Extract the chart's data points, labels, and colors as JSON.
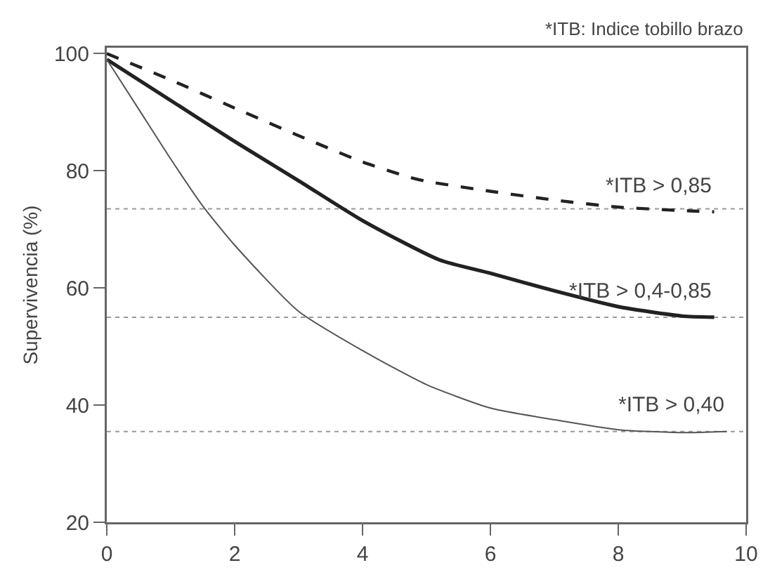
{
  "chart_data": {
    "type": "line",
    "ylabel": "Supervivencia (%)",
    "xlim": [
      0,
      10
    ],
    "ylim": [
      20,
      101
    ],
    "xticks": [
      0,
      2,
      4,
      6,
      8,
      10
    ],
    "yticks": [
      20,
      40,
      60,
      80,
      100
    ],
    "grid": false,
    "legend": false,
    "marker": "none",
    "annotations": [
      "*ITB: Indice tobillo brazo"
    ],
    "ref_lines": [
      {
        "axis": "y",
        "value": 73.5,
        "color": "#999999",
        "line_style": "dotted"
      },
      {
        "axis": "y",
        "value": 55,
        "color": "#999999",
        "line_style": "dotted"
      },
      {
        "axis": "y",
        "value": 35.5,
        "color": "#999999",
        "line_style": "dotted"
      }
    ],
    "series": [
      {
        "name": "*ITB > 0,85",
        "color": "#222222",
        "line_style": "dashed",
        "x": [
          0,
          1,
          2,
          3,
          4,
          4.7,
          5,
          6,
          7,
          8,
          9,
          9.5
        ],
        "values": [
          100,
          95.5,
          90.7,
          86,
          81.5,
          79,
          78.2,
          76.5,
          75,
          73.8,
          73.2,
          73
        ]
      },
      {
        "name": "*ITB > 0,4-0,85",
        "color": "#222222",
        "line_style": "solid",
        "x": [
          0,
          1,
          2,
          3,
          4,
          5.2,
          6,
          7,
          8,
          9,
          9.5
        ],
        "values": [
          99,
          92,
          85,
          78.3,
          71.5,
          64.8,
          62.5,
          59.5,
          56.8,
          55.2,
          55
        ]
      },
      {
        "name": "*ITB > 0,40",
        "color": "#555555",
        "line_style": "solid",
        "x": [
          0,
          0.5,
          1,
          1.5,
          2,
          3,
          4,
          5,
          6,
          7,
          8,
          9,
          9.7
        ],
        "values": [
          99,
          90.5,
          82,
          74,
          67.3,
          56,
          49.3,
          43.5,
          39.5,
          37.5,
          35.8,
          35.3,
          35.5
        ]
      }
    ]
  }
}
